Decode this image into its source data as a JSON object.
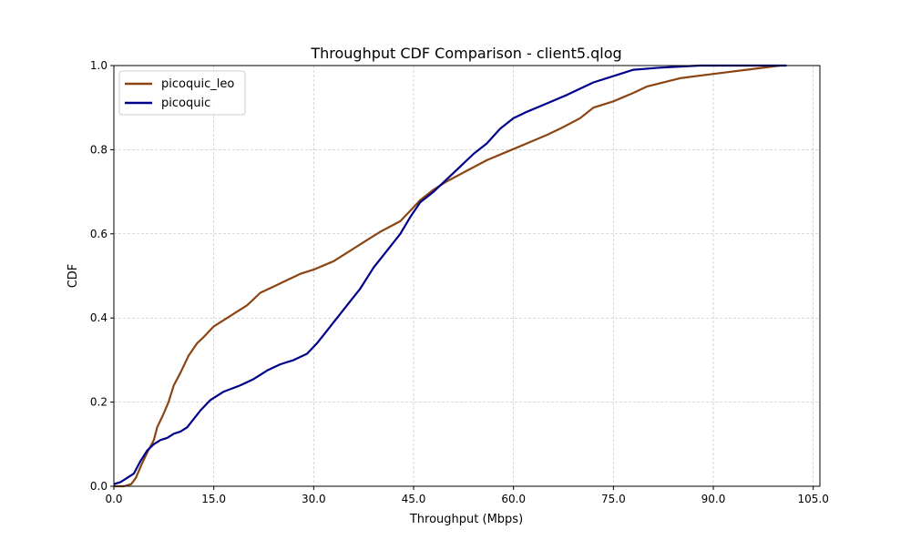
{
  "chart_data": {
    "type": "line",
    "title": "Throughput CDF Comparison - client5.qlog",
    "xlabel": "Throughput (Mbps)",
    "ylabel": "CDF",
    "xlim": [
      0,
      106
    ],
    "ylim": [
      0,
      1
    ],
    "x_ticks": [
      "0.0",
      "15.0",
      "30.0",
      "45.0",
      "60.0",
      "75.0",
      "90.0",
      "105.0"
    ],
    "y_ticks": [
      "0.0",
      "0.2",
      "0.4",
      "0.6",
      "0.8",
      "1.0"
    ],
    "x_tick_values": [
      0,
      15,
      30,
      45,
      60,
      75,
      90,
      105
    ],
    "y_tick_values": [
      0,
      0.2,
      0.4,
      0.6,
      0.8,
      1.0
    ],
    "grid": true,
    "legend_position": "top-left",
    "series": [
      {
        "name": "picoquic_leo",
        "color": "#8B4513",
        "points": [
          [
            0,
            0
          ],
          [
            1.5,
            0.0
          ],
          [
            2.6,
            0.005
          ],
          [
            3.3,
            0.02
          ],
          [
            4.1,
            0.05
          ],
          [
            5.0,
            0.08
          ],
          [
            6.0,
            0.11
          ],
          [
            6.5,
            0.14
          ],
          [
            7.4,
            0.17
          ],
          [
            8.2,
            0.2
          ],
          [
            9.0,
            0.24
          ],
          [
            10.0,
            0.27
          ],
          [
            11.2,
            0.31
          ],
          [
            12.5,
            0.34
          ],
          [
            13.5,
            0.355
          ],
          [
            15.0,
            0.38
          ],
          [
            17.5,
            0.405
          ],
          [
            20.0,
            0.43
          ],
          [
            22.0,
            0.46
          ],
          [
            24.0,
            0.475
          ],
          [
            26.0,
            0.49
          ],
          [
            28.0,
            0.505
          ],
          [
            30.0,
            0.515
          ],
          [
            33.0,
            0.535
          ],
          [
            35.0,
            0.555
          ],
          [
            38.0,
            0.585
          ],
          [
            40.0,
            0.605
          ],
          [
            43.0,
            0.63
          ],
          [
            44.5,
            0.655
          ],
          [
            46.0,
            0.68
          ],
          [
            48.0,
            0.705
          ],
          [
            50.0,
            0.725
          ],
          [
            53.0,
            0.75
          ],
          [
            56.0,
            0.775
          ],
          [
            59.0,
            0.795
          ],
          [
            62.0,
            0.815
          ],
          [
            65.0,
            0.835
          ],
          [
            67.0,
            0.85
          ],
          [
            70.0,
            0.875
          ],
          [
            72.0,
            0.9
          ],
          [
            75.0,
            0.915
          ],
          [
            78.0,
            0.935
          ],
          [
            80.0,
            0.95
          ],
          [
            85.0,
            0.97
          ],
          [
            90.0,
            0.98
          ],
          [
            95.0,
            0.99
          ],
          [
            100.0,
            1.0
          ]
        ]
      },
      {
        "name": "picoquic",
        "color": "#00008B",
        "points": [
          [
            0,
            0.005
          ],
          [
            1.0,
            0.01
          ],
          [
            2.0,
            0.02
          ],
          [
            3.0,
            0.03
          ],
          [
            4.0,
            0.06
          ],
          [
            5.0,
            0.085
          ],
          [
            6.0,
            0.1
          ],
          [
            7.0,
            0.11
          ],
          [
            8.0,
            0.115
          ],
          [
            9.0,
            0.125
          ],
          [
            10.0,
            0.13
          ],
          [
            11.0,
            0.14
          ],
          [
            12.0,
            0.16
          ],
          [
            13.0,
            0.18
          ],
          [
            14.5,
            0.205
          ],
          [
            16.5,
            0.225
          ],
          [
            19.0,
            0.24
          ],
          [
            21.0,
            0.255
          ],
          [
            23.0,
            0.275
          ],
          [
            25.0,
            0.29
          ],
          [
            27.0,
            0.3
          ],
          [
            29.0,
            0.315
          ],
          [
            30.5,
            0.34
          ],
          [
            32.0,
            0.37
          ],
          [
            33.0,
            0.39
          ],
          [
            35.0,
            0.43
          ],
          [
            37.0,
            0.47
          ],
          [
            39.0,
            0.52
          ],
          [
            41.0,
            0.56
          ],
          [
            43.0,
            0.6
          ],
          [
            44.5,
            0.64
          ],
          [
            46.0,
            0.675
          ],
          [
            48.0,
            0.7
          ],
          [
            50.0,
            0.73
          ],
          [
            52.0,
            0.76
          ],
          [
            54.0,
            0.79
          ],
          [
            56.0,
            0.815
          ],
          [
            58.0,
            0.85
          ],
          [
            60.0,
            0.875
          ],
          [
            62.0,
            0.89
          ],
          [
            65.0,
            0.91
          ],
          [
            68.0,
            0.93
          ],
          [
            70.0,
            0.945
          ],
          [
            72.0,
            0.96
          ],
          [
            75.0,
            0.975
          ],
          [
            78.0,
            0.99
          ],
          [
            82.0,
            0.995
          ],
          [
            88.0,
            1.0
          ],
          [
            101.0,
            1.0
          ]
        ]
      }
    ]
  }
}
